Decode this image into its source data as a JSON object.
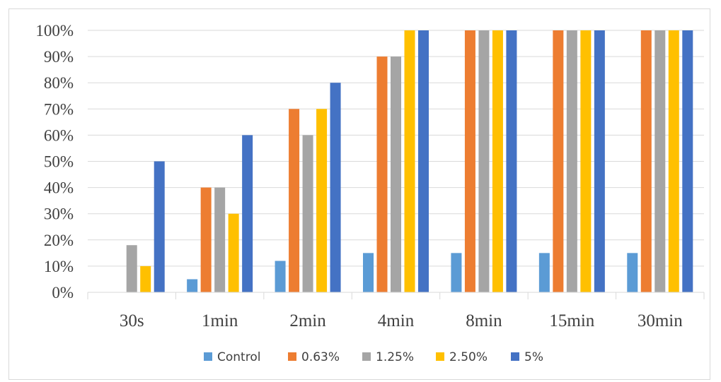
{
  "chart_data": {
    "type": "bar",
    "title": "",
    "xlabel": "",
    "ylabel": "",
    "categories": [
      "30s",
      "1min",
      "2min",
      "4min",
      "8min",
      "15min",
      "30min"
    ],
    "ylim": [
      0,
      100
    ],
    "yticks": [
      "0%",
      "10%",
      "20%",
      "30%",
      "40%",
      "50%",
      "60%",
      "70%",
      "80%",
      "90%",
      "100%"
    ],
    "grid": true,
    "legend_position": "bottom",
    "series": [
      {
        "name": "Control",
        "color": "#5B9BD5",
        "values": [
          0,
          5,
          12,
          15,
          15,
          15,
          15
        ]
      },
      {
        "name": "0.63%",
        "color": "#ED7D31",
        "values": [
          0,
          40,
          70,
          90,
          100,
          100,
          100
        ]
      },
      {
        "name": "1.25%",
        "color": "#A5A5A5",
        "values": [
          18,
          40,
          60,
          90,
          100,
          100,
          100
        ]
      },
      {
        "name": "2.50%",
        "color": "#FFC000",
        "values": [
          10,
          30,
          70,
          100,
          100,
          100,
          100
        ]
      },
      {
        "name": "5%",
        "color": "#4472C4",
        "values": [
          50,
          60,
          80,
          100,
          100,
          100,
          100
        ]
      }
    ]
  }
}
